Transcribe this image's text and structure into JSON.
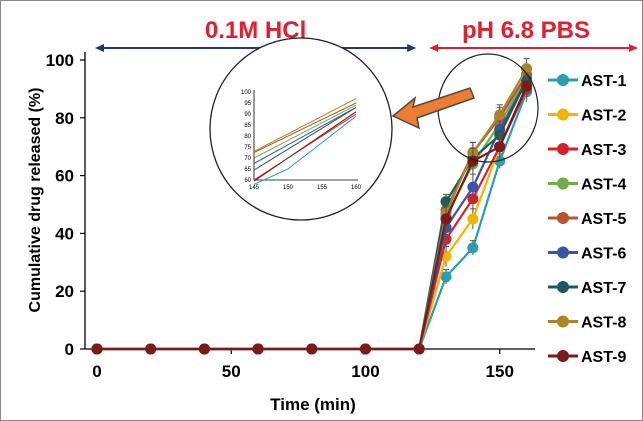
{
  "chart_data": {
    "type": "line",
    "xlabel": "Time (min)",
    "ylabel": "Cumulative drug released (%)",
    "xlim": [
      0,
      165
    ],
    "ylim": [
      0,
      100
    ],
    "x_ticks": [
      "0",
      "50",
      "100",
      "150"
    ],
    "y_ticks": [
      "0",
      "20",
      "40",
      "60",
      "80",
      "100"
    ],
    "x": [
      0,
      20,
      40,
      60,
      80,
      100,
      120,
      130,
      140,
      150,
      160
    ],
    "grid": false,
    "legend_position": "right",
    "phases": [
      {
        "label": "0.1M HCl",
        "x_range": [
          0,
          120
        ],
        "color": "#e02030",
        "arrow_color": "#1f3a78"
      },
      {
        "label": "pH 6.8 PBS",
        "x_range": [
          120,
          165
        ],
        "color": "#e02030",
        "arrow_color": "#e02030"
      }
    ],
    "series": [
      {
        "name": "AST-1",
        "color": "#2a9db0",
        "values": [
          0,
          0,
          0,
          0,
          0,
          0,
          0,
          25,
          35,
          65,
          89
        ]
      },
      {
        "name": "AST-2",
        "color": "#f5b400",
        "values": [
          0,
          0,
          0,
          0,
          0,
          0,
          0,
          32,
          45,
          70,
          91
        ]
      },
      {
        "name": "AST-3",
        "color": "#d2232a",
        "values": [
          0,
          0,
          0,
          0,
          0,
          0,
          0,
          38,
          52,
          70,
          90
        ]
      },
      {
        "name": "AST-4",
        "color": "#70ad47",
        "values": [
          0,
          0,
          0,
          0,
          0,
          0,
          0,
          46,
          64,
          78,
          94
        ]
      },
      {
        "name": "AST-5",
        "color": "#b5562a",
        "values": [
          0,
          0,
          0,
          0,
          0,
          0,
          0,
          48,
          68,
          80,
          95
        ]
      },
      {
        "name": "AST-6",
        "color": "#3a55a5",
        "values": [
          0,
          0,
          0,
          0,
          0,
          0,
          0,
          42,
          56,
          76,
          93
        ]
      },
      {
        "name": "AST-7",
        "color": "#1e5a5a",
        "values": [
          0,
          0,
          0,
          0,
          0,
          0,
          0,
          51,
          66,
          74,
          93
        ]
      },
      {
        "name": "AST-8",
        "color": "#a8862a",
        "values": [
          0,
          0,
          0,
          0,
          0,
          0,
          0,
          47,
          68,
          81,
          97
        ]
      },
      {
        "name": "AST-9",
        "color": "#7a1a1a",
        "values": [
          0,
          0,
          0,
          0,
          0,
          0,
          0,
          45,
          65,
          70,
          91
        ]
      }
    ],
    "inset": {
      "description": "magnified view of release between 145 and 160 min",
      "xlim": [
        145,
        160
      ],
      "ylim": [
        60,
        100
      ],
      "x_ticks": [
        "145",
        "150",
        "155",
        "160"
      ],
      "y_ticks": [
        "60",
        "65",
        "70",
        "75",
        "80",
        "85",
        "90",
        "95",
        "100"
      ]
    }
  }
}
